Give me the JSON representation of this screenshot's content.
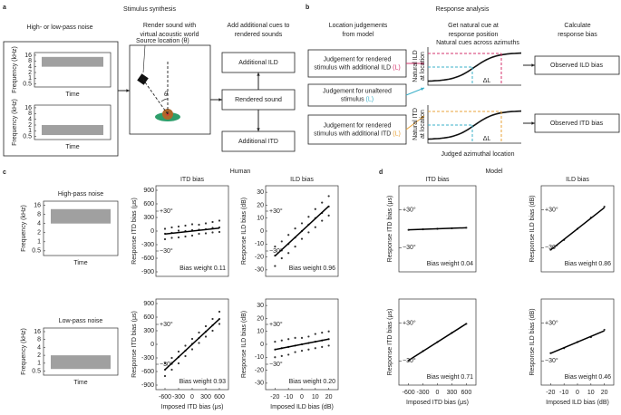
{
  "diagram": {
    "a": {
      "letter": "a",
      "title": "Stimulus synthesis",
      "headers": [
        [
          "High- or low-pass noise"
        ],
        [
          "Render sound with",
          "virtual acoustic world"
        ],
        [
          "Add additional cues to",
          "rendered sounds"
        ]
      ],
      "source_label": "Source location (θ)",
      "angle_label": "θ",
      "boxes": [
        "Additional ILD",
        "Rendered sound",
        "Additional ITD"
      ]
    },
    "b": {
      "letter": "b",
      "title": "Response analysis",
      "headers": [
        [
          "Location judgements",
          "from model"
        ],
        [
          "Get natural cue at",
          "response position"
        ],
        [
          "Calculate",
          "response bias"
        ]
      ],
      "judgements": [
        {
          "lines": [
            "Judgement for rendered",
            "stimulus with additional ILD"
          ],
          "marker": "(L)",
          "color": "#d6336c"
        },
        {
          "lines": [
            "Judgement for unaltered",
            "stimulus"
          ],
          "marker": "(L)",
          "color": "#3bb0c9"
        },
        {
          "lines": [
            "Judgement for rendered",
            "stimulus with additional ITD"
          ],
          "marker": "(L)",
          "color": "#e8a33a"
        }
      ],
      "curve_title": "Natural cues across azimuths",
      "curve_labels": [
        [
          "Natural ILD",
          "at location"
        ],
        [
          "Natural ITD",
          "at location"
        ]
      ],
      "delta": [
        "ΔL",
        "ΔL"
      ],
      "x_title": "Judged azimuthal location",
      "outputs": [
        "Observed ILD bias",
        "Observed ITD bias"
      ]
    },
    "c": {
      "letter": "c",
      "title": "Human"
    },
    "d": {
      "letter": "d",
      "title": "Model"
    }
  },
  "chart_data": [
    {
      "type": "band",
      "ylabel": "Frequency (kHz)",
      "xlabel": "Time",
      "yticks": [
        16,
        8,
        4,
        2,
        1,
        0.5
      ],
      "log_y": true,
      "ylim": [
        0.35,
        22
      ],
      "band": [
        4,
        13
      ],
      "color": "#a0a0a0"
    },
    {
      "type": "band",
      "ylabel": "Frequency (kHz)",
      "xlabel": "Time",
      "yticks": [
        16,
        8,
        4,
        2,
        1,
        0.5
      ],
      "log_y": true,
      "ylim": [
        0.35,
        22
      ],
      "band": [
        0.6,
        2
      ],
      "color": "#a0a0a0"
    },
    {
      "type": "band",
      "title": "High-pass noise",
      "ylabel": "Frequency (kHz)",
      "xlabel": "Time",
      "yticks": [
        16,
        8,
        4,
        2,
        1,
        0.5
      ],
      "log_y": true,
      "ylim": [
        0.35,
        22
      ],
      "band": [
        4,
        12
      ],
      "color": "#a0a0a0"
    },
    {
      "type": "band",
      "title": "Low-pass noise",
      "ylabel": "Frequency (kHz)",
      "xlabel": "Time",
      "yticks": [
        16,
        8,
        4,
        2,
        1,
        0.5
      ],
      "log_y": true,
      "ylim": [
        0.35,
        22
      ],
      "band": [
        0.6,
        2
      ],
      "color": "#a0a0a0"
    },
    {
      "type": "scatter",
      "title": "ITD bias",
      "ylabel": "Response ITD bias (μs)",
      "xlim": [
        -800,
        800
      ],
      "ylim": [
        -1000,
        1000
      ],
      "yticks": [
        900,
        600,
        300,
        0,
        -300,
        -600,
        -900
      ],
      "x": [
        -600,
        -600,
        -600,
        -450,
        -450,
        -450,
        -300,
        -300,
        -300,
        -150,
        -150,
        -150,
        0,
        0,
        0,
        150,
        150,
        150,
        300,
        300,
        300,
        450,
        450,
        450,
        600,
        600,
        600
      ],
      "values": [
        -180,
        -60,
        50,
        -150,
        -40,
        80,
        -140,
        10,
        100,
        -120,
        0,
        120,
        -100,
        20,
        150,
        -60,
        30,
        140,
        -50,
        40,
        170,
        -30,
        70,
        200,
        -20,
        80,
        230
      ],
      "bias_weight": 0.11,
      "bias_weight_label": "Bias weight 0.11",
      "annotations": [
        "+30°",
        "−30°"
      ],
      "color": "#333333"
    },
    {
      "type": "scatter",
      "title": "ILD bias",
      "ylabel": "Response ILD bias (dB)",
      "xlim": [
        -27,
        27
      ],
      "ylim": [
        -35,
        35
      ],
      "yticks": [
        30,
        20,
        10,
        0,
        -10,
        -20,
        -30
      ],
      "x": [
        -20,
        -20,
        -20,
        -15,
        -15,
        -15,
        -10,
        -10,
        -10,
        -5,
        -5,
        -5,
        0,
        0,
        0,
        5,
        5,
        5,
        10,
        10,
        10,
        15,
        15,
        15,
        20,
        20,
        20
      ],
      "values": [
        -27,
        -19,
        -12,
        -21,
        -15,
        -8,
        -17,
        -10,
        -3,
        -12,
        -5,
        2,
        -6,
        0,
        6,
        -1,
        5,
        11,
        3,
        10,
        17,
        8,
        14,
        22,
        12,
        19,
        27
      ],
      "bias_weight": 0.96,
      "bias_weight_label": "Bias weight 0.96",
      "annotations": [
        "+30°",
        "−30°"
      ],
      "color": "#333333"
    },
    {
      "type": "scatter",
      "ylabel": "Response ITD bias (μs)",
      "xlabel": "Imposed ITD bias (μs)",
      "xlim": [
        -800,
        800
      ],
      "ylim": [
        -1000,
        1000
      ],
      "yticks": [
        900,
        600,
        300,
        0,
        -300,
        -600,
        -900
      ],
      "xticks": [
        -600,
        -300,
        0,
        300,
        600
      ],
      "x": [
        -600,
        -600,
        -600,
        -450,
        -450,
        -450,
        -300,
        -300,
        -300,
        -150,
        -150,
        -150,
        0,
        0,
        0,
        150,
        150,
        150,
        300,
        300,
        300,
        450,
        450,
        450,
        600,
        600,
        600
      ],
      "values": [
        -700,
        -560,
        -420,
        -560,
        -430,
        -300,
        -420,
        -280,
        -160,
        -260,
        -140,
        -30,
        -110,
        10,
        120,
        30,
        140,
        260,
        170,
        280,
        400,
        300,
        420,
        560,
        450,
        560,
        720
      ],
      "bias_weight": 0.93,
      "bias_weight_label": "Bias weight 0.93",
      "annotations": [
        "+30°",
        "−30°"
      ],
      "color": "#333333"
    },
    {
      "type": "scatter",
      "ylabel": "Response ILD bias (dB)",
      "xlabel": "Imposed ILD bias (dB)",
      "xlim": [
        -27,
        27
      ],
      "ylim": [
        -35,
        35
      ],
      "yticks": [
        30,
        20,
        10,
        0,
        -10,
        -20,
        -30
      ],
      "xticks": [
        -20,
        -10,
        0,
        10,
        20
      ],
      "x": [
        -20,
        -20,
        -20,
        -15,
        -15,
        -15,
        -10,
        -10,
        -10,
        -5,
        -5,
        -5,
        0,
        0,
        0,
        5,
        5,
        5,
        10,
        10,
        10,
        15,
        15,
        15,
        20,
        20,
        20
      ],
      "values": [
        -10,
        -4,
        2,
        -9,
        -3,
        3,
        -8,
        -2,
        4,
        -6,
        -1,
        5,
        -5,
        0,
        5,
        -4,
        1,
        6,
        -3,
        2,
        8,
        -2,
        3,
        9,
        -1,
        4,
        10
      ],
      "bias_weight": 0.2,
      "bias_weight_label": "Bias weight 0.20",
      "annotations": [
        "+30°",
        "−30°"
      ],
      "color": "#333333"
    },
    {
      "type": "scatter",
      "title": "ITD bias",
      "ylabel": "Response ITD bias (μs)",
      "xlim": [
        -800,
        800
      ],
      "ylim": [
        -1000,
        1000
      ],
      "x": [
        -600,
        -300,
        0,
        300,
        600
      ],
      "values": [
        -25,
        -12,
        0,
        12,
        25
      ],
      "bias_weight": 0.04,
      "bias_weight_label": "Bias weight 0.04",
      "annotations": [
        "+30°",
        "−30°"
      ],
      "color": "#333333"
    },
    {
      "type": "scatter",
      "title": "ILD bias",
      "ylabel": "Response ILD bias (dB)",
      "xlim": [
        -27,
        27
      ],
      "ylim": [
        -35,
        35
      ],
      "x": [
        -20,
        -10,
        0,
        10,
        20
      ],
      "values": [
        -17,
        -9,
        0,
        9,
        18
      ],
      "bias_weight": 0.86,
      "bias_weight_label": "Bias weight 0.86",
      "annotations": [
        "+30°",
        "−30°"
      ],
      "color": "#333333"
    },
    {
      "type": "scatter",
      "ylabel": "Response ITD bias (μs)",
      "xlabel": "Imposed ITD bias (μs)",
      "xlim": [
        -800,
        800
      ],
      "ylim": [
        -1000,
        1000
      ],
      "xticks": [
        -600,
        -300,
        0,
        300,
        600
      ],
      "x": [
        -600,
        -300,
        0,
        300,
        600
      ],
      "values": [
        -430,
        -210,
        0,
        215,
        425
      ],
      "bias_weight": 0.71,
      "bias_weight_label": "Bias weight 0.71",
      "annotations": [
        "+30°",
        "−30°"
      ],
      "color": "#333333"
    },
    {
      "type": "scatter",
      "ylabel": "Response ILD bias (dB)",
      "xlabel": "Imposed ILD bias (dB)",
      "xlim": [
        -27,
        27
      ],
      "ylim": [
        -35,
        35
      ],
      "xticks": [
        -20,
        -10,
        0,
        10,
        20
      ],
      "x": [
        -20,
        -10,
        0,
        10,
        20
      ],
      "values": [
        -9,
        -5,
        0,
        4,
        10
      ],
      "bias_weight": 0.46,
      "bias_weight_label": "Bias weight 0.46",
      "annotations": [
        "+30°",
        "−30°"
      ],
      "color": "#333333"
    }
  ]
}
